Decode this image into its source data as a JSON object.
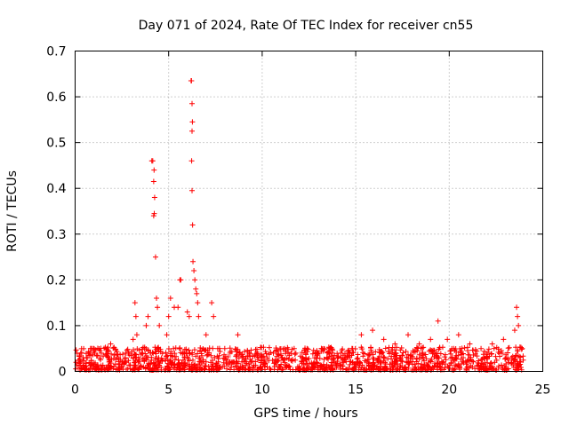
{
  "chart_data": {
    "type": "scatter",
    "title": "Day 071 of 2024, Rate Of TEC Index for receiver cn55",
    "xlabel": "GPS time / hours",
    "ylabel": "ROTI / TECUs",
    "xlim": [
      0,
      25
    ],
    "ylim": [
      0,
      0.7
    ],
    "xticks": [
      0,
      5,
      10,
      15,
      20,
      25
    ],
    "yticks": [
      0,
      0.1,
      0.2,
      0.3,
      0.4,
      0.5,
      0.6,
      0.7
    ],
    "xtick_labels": [
      "0",
      "5",
      "10",
      "15",
      "20",
      "25"
    ],
    "ytick_labels": [
      "0",
      "0.1",
      "0.2",
      "0.3",
      "0.4",
      "0.5",
      "0.6",
      "0.7"
    ],
    "grid": true,
    "marker": "+",
    "color": "#ff0000",
    "series": [
      {
        "name": "ROTI",
        "points": [
          [
            0.3,
            0.04
          ],
          [
            0.6,
            0.03
          ],
          [
            1.0,
            0.05
          ],
          [
            1.4,
            0.04
          ],
          [
            1.9,
            0.06
          ],
          [
            2.3,
            0.03
          ],
          [
            2.7,
            0.04
          ],
          [
            3.1,
            0.07
          ],
          [
            3.2,
            0.15
          ],
          [
            3.25,
            0.12
          ],
          [
            3.3,
            0.08
          ],
          [
            3.8,
            0.1
          ],
          [
            3.9,
            0.12
          ],
          [
            4.1,
            0.46
          ],
          [
            4.15,
            0.46
          ],
          [
            4.2,
            0.415
          ],
          [
            4.22,
            0.44
          ],
          [
            4.25,
            0.38
          ],
          [
            4.2,
            0.34
          ],
          [
            4.23,
            0.345
          ],
          [
            4.3,
            0.25
          ],
          [
            4.35,
            0.16
          ],
          [
            4.4,
            0.14
          ],
          [
            4.5,
            0.1
          ],
          [
            4.9,
            0.08
          ],
          [
            5.0,
            0.12
          ],
          [
            5.1,
            0.16
          ],
          [
            5.3,
            0.14
          ],
          [
            5.5,
            0.14
          ],
          [
            5.6,
            0.2
          ],
          [
            5.65,
            0.2
          ],
          [
            6.0,
            0.13
          ],
          [
            6.1,
            0.12
          ],
          [
            6.2,
            0.635
          ],
          [
            6.22,
            0.635
          ],
          [
            6.25,
            0.585
          ],
          [
            6.27,
            0.545
          ],
          [
            6.25,
            0.525
          ],
          [
            6.23,
            0.46
          ],
          [
            6.25,
            0.395
          ],
          [
            6.28,
            0.32
          ],
          [
            6.3,
            0.24
          ],
          [
            6.35,
            0.22
          ],
          [
            6.4,
            0.2
          ],
          [
            6.45,
            0.18
          ],
          [
            6.5,
            0.17
          ],
          [
            6.55,
            0.15
          ],
          [
            6.6,
            0.12
          ],
          [
            7.0,
            0.08
          ],
          [
            7.3,
            0.15
          ],
          [
            7.4,
            0.12
          ],
          [
            8.0,
            0.05
          ],
          [
            8.7,
            0.08
          ],
          [
            9.3,
            0.04
          ],
          [
            10.0,
            0.03
          ],
          [
            10.6,
            0.04
          ],
          [
            11.2,
            0.05
          ],
          [
            11.8,
            0.04
          ],
          [
            12.4,
            0.05
          ],
          [
            13.0,
            0.04
          ],
          [
            13.6,
            0.05
          ],
          [
            14.2,
            0.04
          ],
          [
            14.8,
            0.05
          ],
          [
            15.3,
            0.08
          ],
          [
            15.9,
            0.09
          ],
          [
            16.5,
            0.07
          ],
          [
            17.1,
            0.06
          ],
          [
            17.8,
            0.08
          ],
          [
            18.4,
            0.06
          ],
          [
            19.0,
            0.07
          ],
          [
            19.4,
            0.11
          ],
          [
            19.9,
            0.07
          ],
          [
            20.5,
            0.08
          ],
          [
            21.1,
            0.06
          ],
          [
            21.7,
            0.05
          ],
          [
            22.3,
            0.06
          ],
          [
            22.9,
            0.07
          ],
          [
            23.5,
            0.09
          ],
          [
            23.6,
            0.14
          ],
          [
            23.65,
            0.12
          ],
          [
            23.7,
            0.1
          ],
          [
            23.9,
            0.05
          ]
        ]
      }
    ],
    "baseline_band": {
      "x_range": [
        0,
        24
      ],
      "typical_max": 0.05
    }
  }
}
